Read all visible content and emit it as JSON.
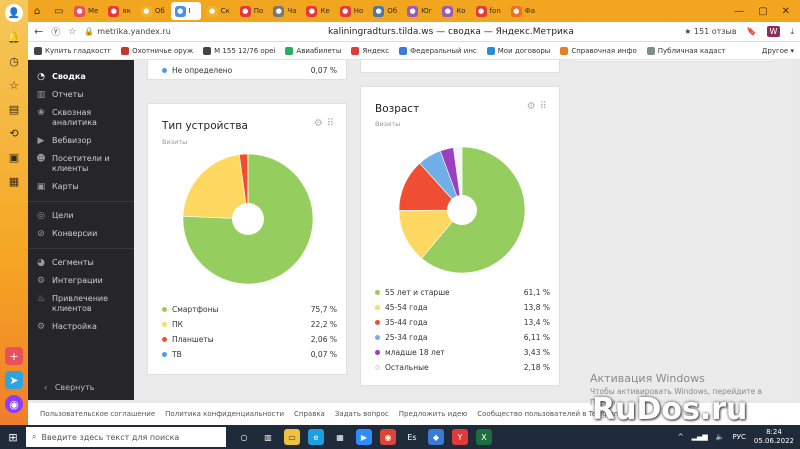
{
  "browser": {
    "tabs": [
      {
        "label": "Ме",
        "color": "#e8505b"
      },
      {
        "label": "як",
        "color": "#e03a3a"
      },
      {
        "label": "Об",
        "color": "#f0b429"
      },
      {
        "label": "I",
        "color": "#4a90e2",
        "active": true
      },
      {
        "label": "Ск",
        "color": "#f0b429"
      },
      {
        "label": "По",
        "color": "#e03a3a"
      },
      {
        "label": "Ча",
        "color": "#777777"
      },
      {
        "label": "Ке",
        "color": "#e03a3a"
      },
      {
        "label": "Но",
        "color": "#e03a3a"
      },
      {
        "label": "Об",
        "color": "#4a76a8"
      },
      {
        "label": "Юг",
        "color": "#9b59b6"
      },
      {
        "label": "Ко",
        "color": "#9b59b6"
      },
      {
        "label": "fon",
        "color": "#e03a3a"
      },
      {
        "label": "Фа",
        "color": "#f07020"
      }
    ],
    "url": "metrika.yandex.ru",
    "page_title": "kaliningradturs.tilda.ws — сводка — Яндекс.Метрика",
    "rating": "151 отзыв",
    "bookmarks": [
      "Купить гладкостг",
      "Охотничье оруж",
      "М 155 12/76 ореі",
      "Авиабилеты",
      "Яндекс",
      "Федеральный инс",
      "Мои договоры",
      "Справочная инфо",
      "Публичная кадаст"
    ],
    "bookmarks_other": "Другое"
  },
  "sidebar": {
    "items": [
      {
        "label": "Сводка",
        "icon": "dashboard-icon",
        "active": true
      },
      {
        "label": "Отчеты",
        "icon": "reports-icon"
      },
      {
        "label": "Сквозная аналитика",
        "icon": "analytics-icon"
      },
      {
        "label": "Вебвизор",
        "icon": "webvisor-icon"
      },
      {
        "label": "Посетители и клиенты",
        "icon": "visitors-icon"
      },
      {
        "label": "Карты",
        "icon": "maps-icon"
      },
      {
        "label": "Цели",
        "icon": "goals-icon"
      },
      {
        "label": "Конверсии",
        "icon": "conversions-icon"
      },
      {
        "label": "Сегменты",
        "icon": "segments-icon"
      },
      {
        "label": "Интеграции",
        "icon": "integrations-icon"
      },
      {
        "label": "Привлечение клиентов",
        "icon": "acquisition-icon"
      },
      {
        "label": "Настройка",
        "icon": "settings-icon"
      }
    ],
    "collapse_label": "Свернуть"
  },
  "top_fragment": {
    "label": "Не определено",
    "value": "0,07 %"
  },
  "device_widget": {
    "title": "Тип устройства",
    "subtitle": "Визиты",
    "chart_data": {
      "type": "pie",
      "categories": [
        "Смартфоны",
        "ПК",
        "Планшеты",
        "ТВ"
      ],
      "values": [
        75.7,
        22.2,
        2.06,
        0.07
      ],
      "labels": [
        "75,7 %",
        "22,2 %",
        "2,06 %",
        "0,07 %"
      ],
      "colors": [
        "#96cd5f",
        "#ffd861",
        "#f04e32",
        "#4e9be5"
      ]
    }
  },
  "age_widget": {
    "title": "Возраст",
    "subtitle": "Визиты",
    "chart_data": {
      "type": "pie",
      "categories": [
        "55 лет и старше",
        "45-54 года",
        "35-44 года",
        "25-34 года",
        "младше 18 лет",
        "Остальные"
      ],
      "values": [
        61.1,
        13.8,
        13.4,
        6.11,
        3.43,
        2.18
      ],
      "labels": [
        "61,1 %",
        "13,8 %",
        "13,4 %",
        "6,11 %",
        "3,43 %",
        "2,18 %"
      ],
      "colors": [
        "#96cd5f",
        "#ffd861",
        "#f04e32",
        "#6fb0e8",
        "#9b3fc0",
        "#f4f4f4"
      ]
    }
  },
  "footer": {
    "links": [
      "Пользовательское соглашение",
      "Политика конфиденциальности",
      "Справка",
      "Задать вопрос",
      "Предложить идею",
      "Сообщество пользователей в Telegram"
    ]
  },
  "taskbar": {
    "search_placeholder": "Введите здесь текст для поиска",
    "lang": "РУС",
    "time": "8:24",
    "date": "05.06.2022"
  },
  "watermarks": {
    "activation_title": "Активация Windows",
    "activation_sub": "Чтобы активировать Windows, перейдите в",
    "activation_sub2": "Парам",
    "rudos": "RuDos.ru"
  }
}
